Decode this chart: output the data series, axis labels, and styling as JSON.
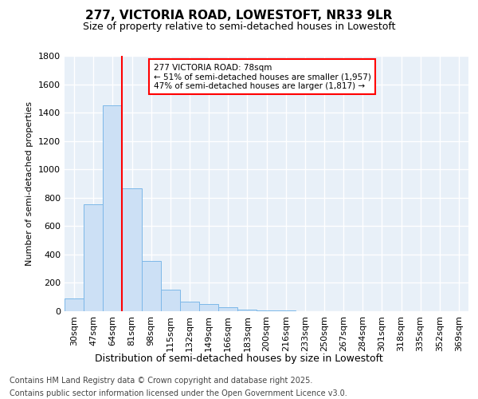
{
  "title_line1": "277, VICTORIA ROAD, LOWESTOFT, NR33 9LR",
  "title_line2": "Size of property relative to semi-detached houses in Lowestoft",
  "xlabel": "Distribution of semi-detached houses by size in Lowestoft",
  "ylabel": "Number of semi-detached properties",
  "categories": [
    "30sqm",
    "47sqm",
    "64sqm",
    "81sqm",
    "98sqm",
    "115sqm",
    "132sqm",
    "149sqm",
    "166sqm",
    "183sqm",
    "200sqm",
    "216sqm",
    "233sqm",
    "250sqm",
    "267sqm",
    "284sqm",
    "301sqm",
    "318sqm",
    "335sqm",
    "352sqm",
    "369sqm"
  ],
  "values": [
    90,
    755,
    1450,
    865,
    355,
    150,
    70,
    50,
    28,
    12,
    5,
    3,
    2,
    2,
    2,
    1,
    1,
    1,
    1,
    1,
    1
  ],
  "bar_color": "#cce0f5",
  "bar_edge_color": "#7db8e8",
  "red_line_index": 3,
  "annotation_text_line1": "277 VICTORIA ROAD: 78sqm",
  "annotation_text_line2": "← 51% of semi-detached houses are smaller (1,957)",
  "annotation_text_line3": "47% of semi-detached houses are larger (1,817) →",
  "footer_line1": "Contains HM Land Registry data © Crown copyright and database right 2025.",
  "footer_line2": "Contains public sector information licensed under the Open Government Licence v3.0.",
  "ylim": [
    0,
    1800
  ],
  "yticks": [
    0,
    200,
    400,
    600,
    800,
    1000,
    1200,
    1400,
    1600,
    1800
  ],
  "fig_bg_color": "#ffffff",
  "plot_bg_color": "#e8f0f8",
  "grid_color": "#ffffff",
  "title1_fontsize": 11,
  "title2_fontsize": 9,
  "ylabel_fontsize": 8,
  "xlabel_fontsize": 9,
  "tick_fontsize": 8,
  "footer_fontsize": 7
}
